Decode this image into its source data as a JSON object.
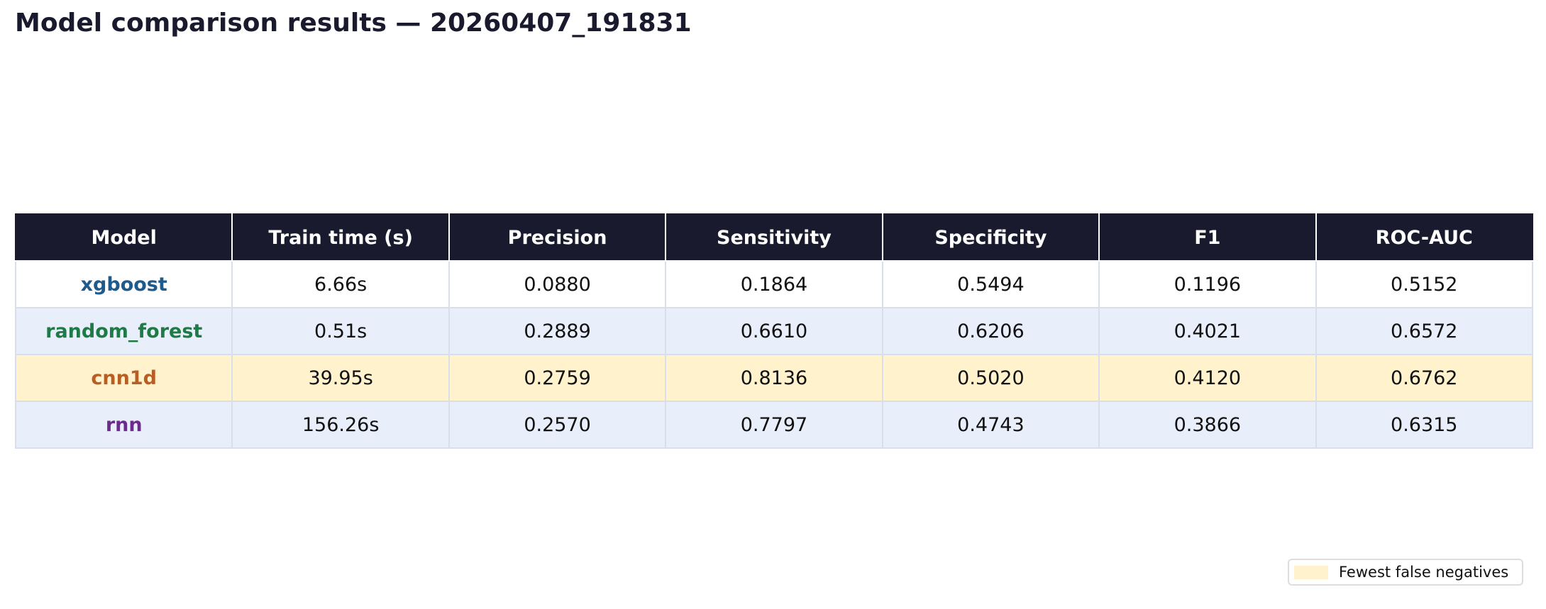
{
  "title": "Model comparison results — 20260407_191831",
  "table": {
    "columns": [
      "Model",
      "Train time (s)",
      "Precision",
      "Sensitivity",
      "Specificity",
      "F1",
      "ROC-AUC"
    ],
    "rows": [
      {
        "cells": [
          "xgboost",
          "6.66s",
          "0.0880",
          "0.1864",
          "0.5494",
          "0.1196",
          "0.5152"
        ],
        "name_color": "#1f5a8c",
        "highlight": false
      },
      {
        "cells": [
          "random_forest",
          "0.51s",
          "0.2889",
          "0.6610",
          "0.6206",
          "0.4021",
          "0.6572"
        ],
        "name_color": "#1e7a46",
        "highlight": false
      },
      {
        "cells": [
          "cnn1d",
          "39.95s",
          "0.2759",
          "0.8136",
          "0.5020",
          "0.4120",
          "0.6762"
        ],
        "name_color": "#b85e22",
        "highlight": true
      },
      {
        "cells": [
          "rnn",
          "156.26s",
          "0.2570",
          "0.7797",
          "0.4743",
          "0.3866",
          "0.6315"
        ],
        "name_color": "#6b2a8c",
        "highlight": false
      }
    ]
  },
  "legend": {
    "label": "Fewest false negatives",
    "color": "#fff2cc"
  }
}
